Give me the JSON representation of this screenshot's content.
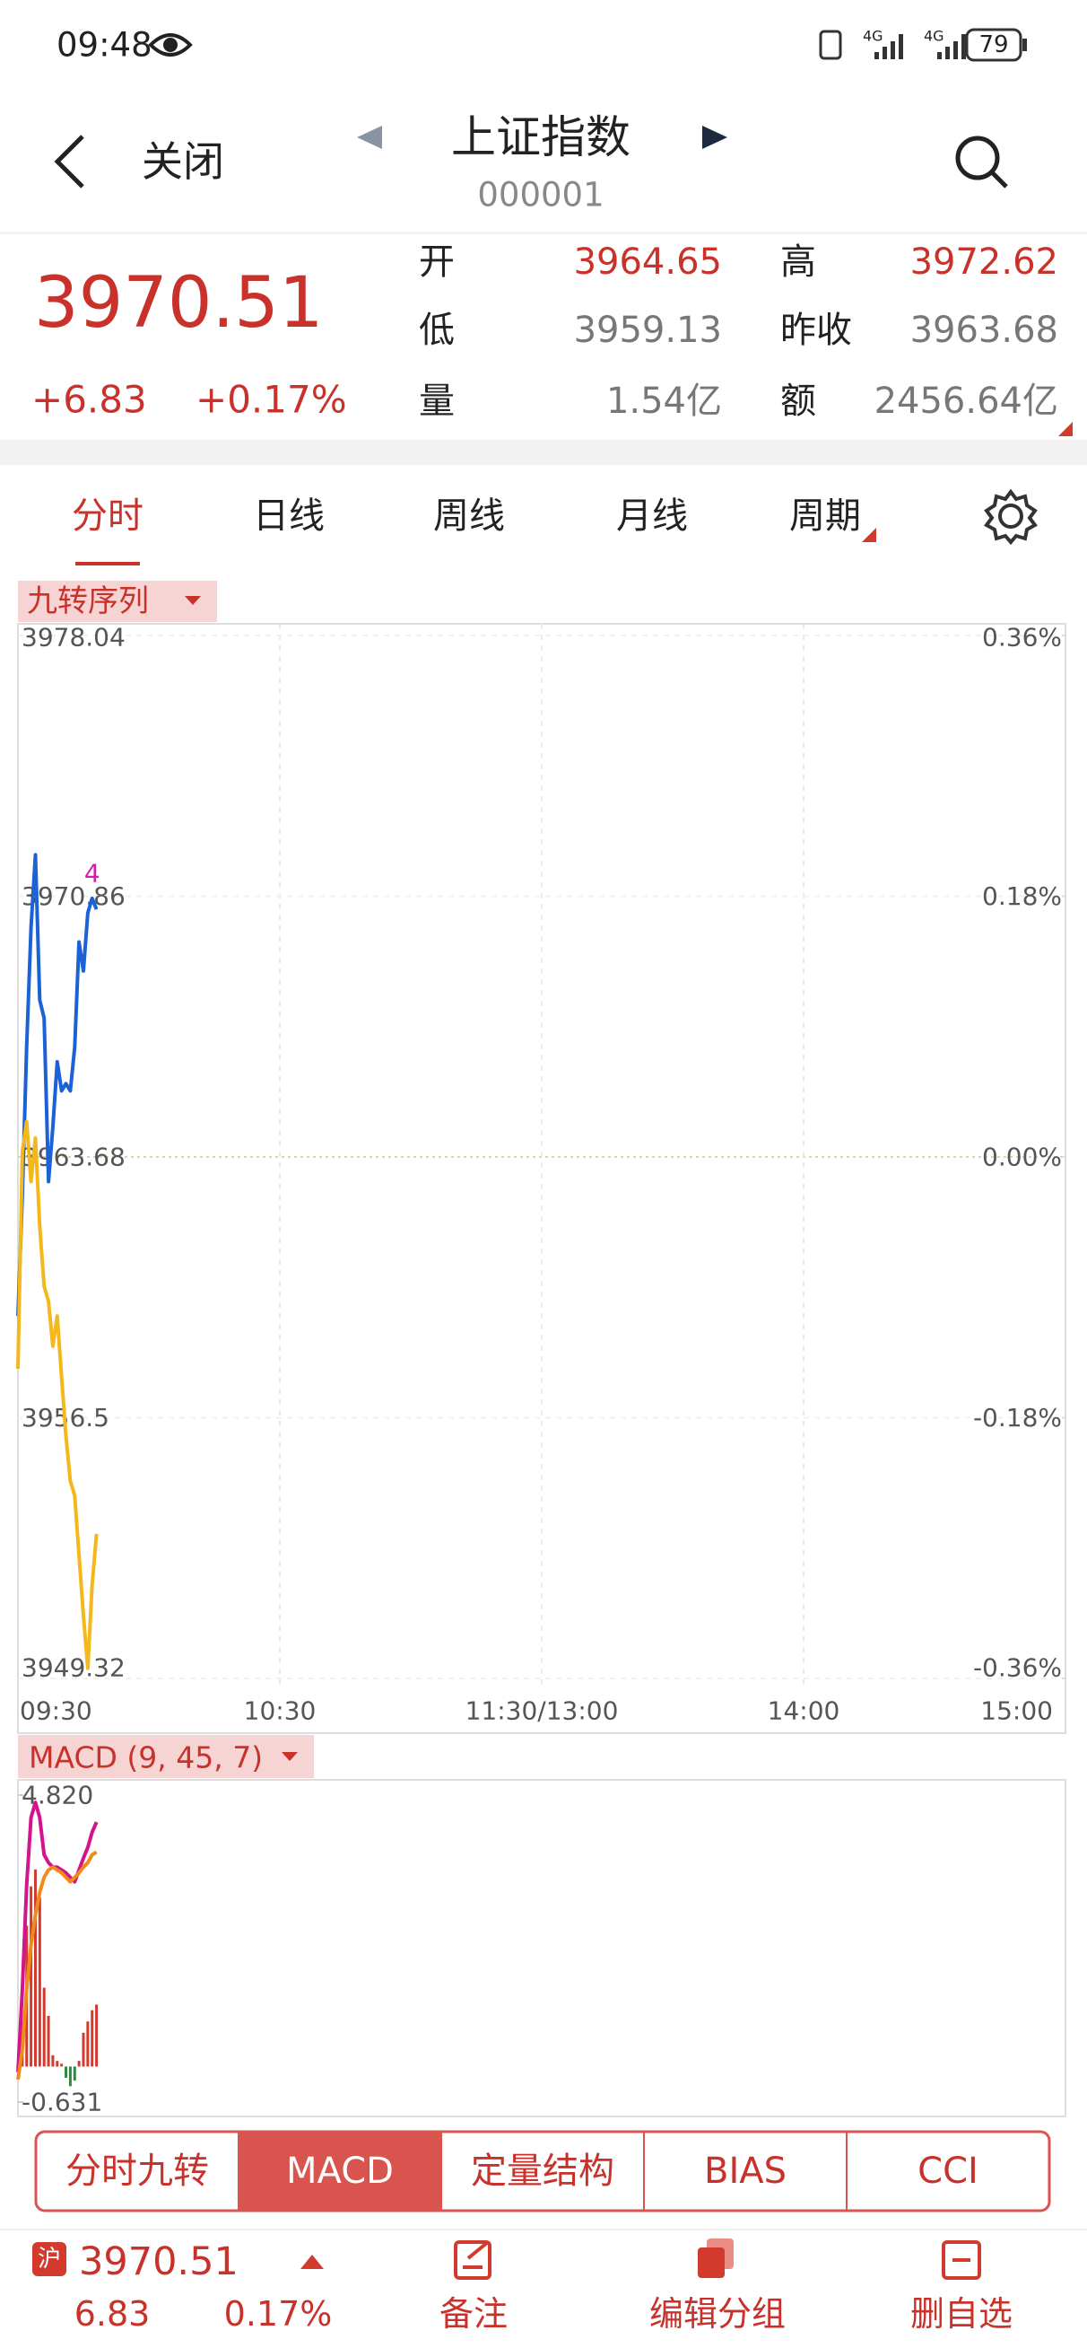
{
  "status_bar": {
    "time": "09:48",
    "battery": "79"
  },
  "header": {
    "back": "关闭",
    "title": "上证指数",
    "code": "000001"
  },
  "quote": {
    "price": "3970.51",
    "change": "+6.83",
    "change_pct": "+0.17%",
    "fields": [
      {
        "label": "开",
        "value": "3964.65"
      },
      {
        "label": "低",
        "value": "3959.13"
      },
      {
        "label": "量",
        "value": "1.54亿"
      },
      {
        "label": "高",
        "value": "3972.62"
      },
      {
        "label": "昨收",
        "value": "3963.68"
      },
      {
        "label": "额",
        "value": "2456.64亿"
      }
    ]
  },
  "tabs": {
    "items": [
      "分时",
      "日线",
      "周线",
      "月线",
      "周期"
    ],
    "active": 0
  },
  "indicator_label": "九转序列",
  "price_chart": {
    "type": "line",
    "x": [
      0,
      1,
      2,
      3,
      4,
      5,
      6,
      7,
      8,
      9,
      10,
      11,
      12,
      13,
      14,
      15,
      16,
      17,
      18
    ],
    "xlim": [
      0,
      240
    ],
    "xticks": [
      {
        "value": 0,
        "label": "09:30"
      },
      {
        "value": 60,
        "label": "10:30"
      },
      {
        "value": 120,
        "label": "11:30/13:00"
      },
      {
        "value": 180,
        "label": "14:00"
      },
      {
        "value": 240,
        "label": "15:00"
      }
    ],
    "ylim": [
      3949.32,
      3978.04
    ],
    "yticks": [
      3978.04,
      3970.86,
      3963.68,
      3956.5,
      3949.32
    ],
    "y2lim": [
      -0.36,
      0.36
    ],
    "y2ticks": [
      {
        "value": 0.36,
        "label": "0.36%"
      },
      {
        "value": 0.18,
        "label": "0.18%"
      },
      {
        "value": 0,
        "label": "0.00%"
      },
      {
        "value": -0.18,
        "label": "-0.18%"
      },
      {
        "value": -0.36,
        "label": "-0.36%"
      }
    ],
    "series": [
      {
        "color": "#1a62d6",
        "values": [
          3959.3,
          3962.6,
          3966.7,
          3970.0,
          3972.0,
          3968.0,
          3967.5,
          3963.0,
          3964.5,
          3966.3,
          3965.5,
          3965.7,
          3965.5,
          3966.7,
          3969.6,
          3968.8,
          3970.4,
          3970.8,
          3970.5
        ]
      },
      {
        "color": "#f2b81c",
        "values": [
          3957.85,
          3963.82,
          3964.65,
          3963.0,
          3964.2,
          3961.77,
          3960.12,
          3959.7,
          3958.47,
          3959.3,
          3957.6,
          3956.0,
          3954.76,
          3954.35,
          3952.7,
          3951.06,
          3949.6,
          3951.88,
          3953.3
        ]
      }
    ],
    "signal_label": "4",
    "signal_color": "#cc22aa",
    "grid": true
  },
  "macd_label": "MACD (9, 45, 7)",
  "macd_chart": {
    "type": "line",
    "ylim": [
      -0.631,
      4.82
    ],
    "yticks": [
      {
        "value": 4.82,
        "label": "4.820"
      },
      -0.631
    ],
    "series": [
      {
        "color": "#d4148c",
        "values": [
          -0.1,
          1.36,
          3.22,
          4.42,
          4.69,
          4.42,
          3.76,
          3.62,
          3.54,
          3.54,
          3.49,
          3.44,
          3.36,
          3.28,
          3.49,
          3.7,
          3.89,
          4.16,
          4.34
        ]
      },
      {
        "color": "#f08a1c",
        "values": [
          -0.23,
          0.3,
          1.36,
          2.16,
          2.69,
          3.09,
          3.36,
          3.49,
          3.54,
          3.49,
          3.44,
          3.36,
          3.28,
          3.36,
          3.44,
          3.54,
          3.62,
          3.76,
          3.81
        ]
      }
    ],
    "histogram": [
      0,
      0.8,
      2.5,
      3.2,
      3.5,
      3.0,
      1.4,
      0.9,
      0.2,
      0.1,
      0.05,
      -0.2,
      -0.35,
      -0.25,
      0.1,
      0.6,
      0.8,
      1.0,
      1.1
    ],
    "up_color": "#d23a2e",
    "down_color": "#2e8b3e"
  },
  "indicator_tabs": {
    "items": [
      "分时九转",
      "MACD",
      "定量结构",
      "BIAS",
      "CCI"
    ],
    "active": 1
  },
  "bottom_bar": {
    "market": "沪",
    "price": "3970.51",
    "change": "6.83",
    "change_pct": "0.17%",
    "actions": [
      "备注",
      "编辑分组",
      "删自选"
    ]
  }
}
